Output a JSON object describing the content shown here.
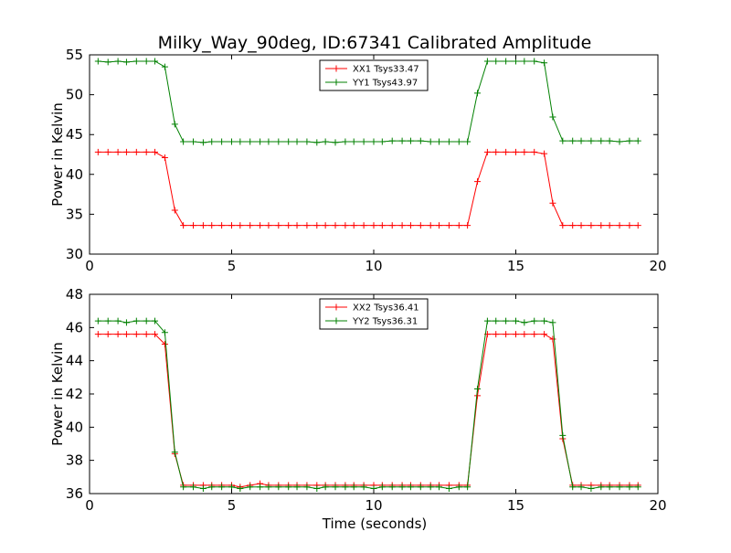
{
  "figure": {
    "title": "Milky_Way_90deg, ID:67341 Calibrated Amplitude",
    "xlabel": "Time (seconds)"
  },
  "colors": {
    "XX": "#ff0000",
    "YY": "#008000"
  },
  "chart_data": [
    {
      "type": "line",
      "ylabel": "Power in Kelvin",
      "xlim": [
        0,
        20
      ],
      "ylim": [
        30,
        55
      ],
      "xticks": [
        "0",
        "5",
        "10",
        "15",
        "20"
      ],
      "yticks": [
        "30",
        "35",
        "40",
        "45",
        "50",
        "55"
      ],
      "legend_position": "top-center",
      "x": [
        0.3,
        0.65,
        1.0,
        1.3,
        1.65,
        2.0,
        2.3,
        2.65,
        3.0,
        3.3,
        3.65,
        4.0,
        4.3,
        4.65,
        5.0,
        5.3,
        5.65,
        6.0,
        6.3,
        6.65,
        7.0,
        7.3,
        7.65,
        8.0,
        8.3,
        8.65,
        9.0,
        9.3,
        9.65,
        10.0,
        10.3,
        10.65,
        11.0,
        11.3,
        11.65,
        12.0,
        12.3,
        12.65,
        13.0,
        13.3,
        13.65,
        14.0,
        14.3,
        14.65,
        15.0,
        15.3,
        15.65,
        16.0,
        16.3,
        16.65,
        17.0,
        17.3,
        17.65,
        18.0,
        18.3,
        18.65,
        19.0,
        19.3
      ],
      "series": [
        {
          "name": "XX1 Tsys33.47",
          "color": "#ff0000",
          "values": [
            42.8,
            42.8,
            42.8,
            42.8,
            42.8,
            42.8,
            42.8,
            42.1,
            35.5,
            33.6,
            33.6,
            33.6,
            33.6,
            33.6,
            33.6,
            33.6,
            33.6,
            33.6,
            33.6,
            33.6,
            33.6,
            33.6,
            33.6,
            33.6,
            33.6,
            33.6,
            33.6,
            33.6,
            33.6,
            33.6,
            33.6,
            33.6,
            33.6,
            33.6,
            33.6,
            33.6,
            33.6,
            33.6,
            33.6,
            33.6,
            39.1,
            42.8,
            42.8,
            42.8,
            42.8,
            42.8,
            42.8,
            42.6,
            36.4,
            33.6,
            33.6,
            33.6,
            33.6,
            33.6,
            33.6,
            33.6,
            33.6,
            33.6
          ]
        },
        {
          "name": "YY1 Tsys43.97",
          "color": "#008000",
          "values": [
            54.2,
            54.1,
            54.2,
            54.1,
            54.2,
            54.2,
            54.2,
            53.5,
            46.3,
            44.1,
            44.1,
            44.0,
            44.1,
            44.1,
            44.1,
            44.1,
            44.1,
            44.1,
            44.1,
            44.1,
            44.1,
            44.1,
            44.1,
            44.0,
            44.1,
            44.0,
            44.1,
            44.1,
            44.1,
            44.1,
            44.1,
            44.2,
            44.2,
            44.2,
            44.2,
            44.1,
            44.1,
            44.1,
            44.1,
            44.1,
            50.2,
            54.2,
            54.2,
            54.2,
            54.2,
            54.2,
            54.2,
            54.0,
            47.2,
            44.2,
            44.2,
            44.2,
            44.2,
            44.2,
            44.2,
            44.1,
            44.2,
            44.2
          ]
        }
      ]
    },
    {
      "type": "line",
      "ylabel": "Power in Kelvin",
      "xlim": [
        0,
        20
      ],
      "ylim": [
        36,
        48
      ],
      "xticks": [
        "0",
        "5",
        "10",
        "15",
        "20"
      ],
      "yticks": [
        "36",
        "38",
        "40",
        "42",
        "44",
        "46",
        "48"
      ],
      "legend_position": "top-center",
      "x": [
        0.3,
        0.65,
        1.0,
        1.3,
        1.65,
        2.0,
        2.3,
        2.65,
        3.0,
        3.3,
        3.65,
        4.0,
        4.3,
        4.65,
        5.0,
        5.3,
        5.65,
        6.0,
        6.3,
        6.65,
        7.0,
        7.3,
        7.65,
        8.0,
        8.3,
        8.65,
        9.0,
        9.3,
        9.65,
        10.0,
        10.3,
        10.65,
        11.0,
        11.3,
        11.65,
        12.0,
        12.3,
        12.65,
        13.0,
        13.3,
        13.65,
        14.0,
        14.3,
        14.65,
        15.0,
        15.3,
        15.65,
        16.0,
        16.3,
        16.65,
        17.0,
        17.3,
        17.65,
        18.0,
        18.3,
        18.65,
        19.0,
        19.3
      ],
      "series": [
        {
          "name": "XX2 Tsys36.41",
          "color": "#ff0000",
          "values": [
            45.6,
            45.6,
            45.6,
            45.6,
            45.6,
            45.6,
            45.6,
            45.0,
            38.4,
            36.5,
            36.5,
            36.5,
            36.5,
            36.5,
            36.5,
            36.4,
            36.5,
            36.6,
            36.5,
            36.5,
            36.5,
            36.5,
            36.5,
            36.5,
            36.5,
            36.5,
            36.5,
            36.5,
            36.5,
            36.5,
            36.5,
            36.5,
            36.5,
            36.5,
            36.5,
            36.5,
            36.5,
            36.5,
            36.5,
            36.5,
            41.9,
            45.6,
            45.6,
            45.6,
            45.6,
            45.6,
            45.6,
            45.6,
            45.3,
            39.3,
            36.5,
            36.5,
            36.5,
            36.5,
            36.5,
            36.5,
            36.5,
            36.5
          ]
        },
        {
          "name": "YY2 Tsys36.31",
          "color": "#008000",
          "values": [
            46.4,
            46.4,
            46.4,
            46.3,
            46.4,
            46.4,
            46.4,
            45.7,
            38.5,
            36.4,
            36.4,
            36.3,
            36.4,
            36.4,
            36.4,
            36.3,
            36.4,
            36.4,
            36.4,
            36.4,
            36.4,
            36.4,
            36.4,
            36.3,
            36.4,
            36.4,
            36.4,
            36.4,
            36.4,
            36.3,
            36.4,
            36.4,
            36.4,
            36.4,
            36.4,
            36.4,
            36.4,
            36.3,
            36.4,
            36.4,
            42.3,
            46.4,
            46.4,
            46.4,
            46.4,
            46.3,
            46.4,
            46.4,
            46.3,
            39.5,
            36.4,
            36.4,
            36.3,
            36.4,
            36.4,
            36.4,
            36.4,
            36.4
          ]
        }
      ]
    }
  ]
}
